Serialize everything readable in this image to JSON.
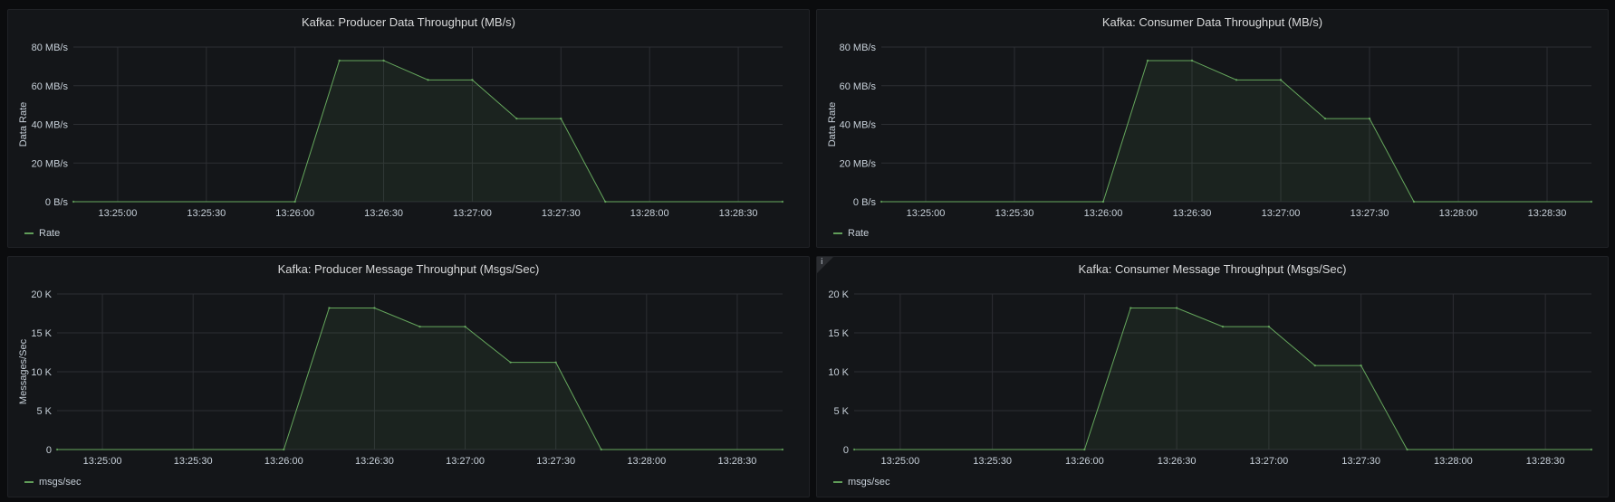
{
  "colors": {
    "series": "#73bf69",
    "grid": "#2c2e33",
    "text": "#c7d0d9"
  },
  "chart_data": [
    {
      "type": "area",
      "title": "Kafka: Producer Data Throughput (MB/s)",
      "ylabel": "Data Rate",
      "x": [
        "13:24:45",
        "13:26:00",
        "13:26:15",
        "13:26:30",
        "13:26:45",
        "13:27:00",
        "13:27:15",
        "13:27:30",
        "13:27:45",
        "13:28:45"
      ],
      "series": [
        {
          "name": "Rate",
          "values": [
            0,
            0,
            73,
            73,
            63,
            63,
            43,
            43,
            0,
            0
          ]
        }
      ],
      "xticks": [
        "13:25:00",
        "13:25:30",
        "13:26:00",
        "13:26:30",
        "13:27:00",
        "13:27:30",
        "13:28:00",
        "13:28:30"
      ],
      "yticks": [
        0,
        20,
        40,
        60,
        80
      ],
      "yticklabels": [
        "0 B/s",
        "20 MB/s",
        "40 MB/s",
        "60 MB/s",
        "80 MB/s"
      ],
      "ylim": [
        0,
        80
      ],
      "legend": "bottom-left"
    },
    {
      "type": "area",
      "title": "Kafka: Consumer Data Throughput (MB/s)",
      "ylabel": "Data Rate",
      "x": [
        "13:24:45",
        "13:26:00",
        "13:26:15",
        "13:26:30",
        "13:26:45",
        "13:27:00",
        "13:27:15",
        "13:27:30",
        "13:27:45",
        "13:28:45"
      ],
      "series": [
        {
          "name": "Rate",
          "values": [
            0,
            0,
            73,
            73,
            63,
            63,
            43,
            43,
            0,
            0
          ]
        }
      ],
      "xticks": [
        "13:25:00",
        "13:25:30",
        "13:26:00",
        "13:26:30",
        "13:27:00",
        "13:27:30",
        "13:28:00",
        "13:28:30"
      ],
      "yticks": [
        0,
        20,
        40,
        60,
        80
      ],
      "yticklabels": [
        "0 B/s",
        "20 MB/s",
        "40 MB/s",
        "60 MB/s",
        "80 MB/s"
      ],
      "ylim": [
        0,
        80
      ],
      "legend": "bottom-left"
    },
    {
      "type": "area",
      "title": "Kafka: Producer Message Throughput (Msgs/Sec)",
      "ylabel": "Messages/Sec",
      "x": [
        "13:24:45",
        "13:26:00",
        "13:26:15",
        "13:26:30",
        "13:26:45",
        "13:27:00",
        "13:27:15",
        "13:27:30",
        "13:27:45",
        "13:28:45"
      ],
      "series": [
        {
          "name": "msgs/sec",
          "values": [
            0,
            0,
            18200,
            18200,
            15800,
            15800,
            11200,
            11200,
            0,
            0
          ]
        }
      ],
      "xticks": [
        "13:25:00",
        "13:25:30",
        "13:26:00",
        "13:26:30",
        "13:27:00",
        "13:27:30",
        "13:28:00",
        "13:28:30"
      ],
      "yticks": [
        0,
        5000,
        10000,
        15000,
        20000
      ],
      "yticklabels": [
        "0",
        "5 K",
        "10 K",
        "15 K",
        "20 K"
      ],
      "ylim": [
        0,
        20000
      ],
      "legend": "bottom-left"
    },
    {
      "type": "area",
      "title": "Kafka: Consumer Message Throughput (Msgs/Sec)",
      "ylabel": "",
      "x": [
        "13:24:45",
        "13:26:00",
        "13:26:15",
        "13:26:30",
        "13:26:45",
        "13:27:00",
        "13:27:15",
        "13:27:30",
        "13:27:45",
        "13:28:45"
      ],
      "series": [
        {
          "name": "msgs/sec",
          "values": [
            0,
            0,
            18200,
            18200,
            15800,
            15800,
            10800,
            10800,
            0,
            0
          ]
        }
      ],
      "xticks": [
        "13:25:00",
        "13:25:30",
        "13:26:00",
        "13:26:30",
        "13:27:00",
        "13:27:30",
        "13:28:00",
        "13:28:30"
      ],
      "yticks": [
        0,
        5000,
        10000,
        15000,
        20000
      ],
      "yticklabels": [
        "0",
        "5 K",
        "10 K",
        "15 K",
        "20 K"
      ],
      "ylim": [
        0,
        20000
      ],
      "legend": "bottom-left",
      "info_icon": "info-icon"
    }
  ]
}
